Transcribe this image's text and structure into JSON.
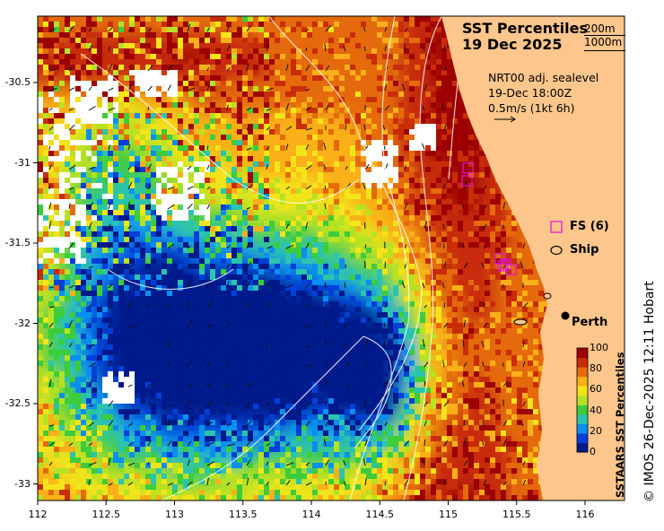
{
  "map": {
    "title_line1": "SST Percentiles",
    "title_line2": "19 Dec 2025",
    "contour_key_1": "200m",
    "contour_key_2": "1000m",
    "current_product": "NRT00 adj. sealevel",
    "current_time": "19-Dec 18:00Z",
    "current_scale": "0.5m/s (1kt 6h)",
    "legend_fs": "FS (6)",
    "legend_ship": "Ship",
    "city_label": "Perth",
    "colorbar_title": "SSTAARS SST Percentiles",
    "colorbar_ticks": [
      "0",
      "20",
      "40",
      "60",
      "80",
      "100"
    ],
    "colorbar_colors": [
      "#001a8c",
      "#0040d8",
      "#0a8ff0",
      "#2cc4ae",
      "#3ccc3c",
      "#b6e224",
      "#f4e41a",
      "#fab018",
      "#e46a0c",
      "#c82c08",
      "#9c0000"
    ],
    "credit": "© IMOS 26-Dec-2025 12:11 Hobart",
    "land_color": "#fcc68c",
    "x_ticks": [
      "112",
      "112.5",
      "113",
      "113.5",
      "114",
      "114.5",
      "115",
      "115.5",
      "116"
    ],
    "y_ticks": [
      "-30.5",
      "-31",
      "-31.5",
      "-32",
      "-32.5",
      "-33"
    ]
  }
}
